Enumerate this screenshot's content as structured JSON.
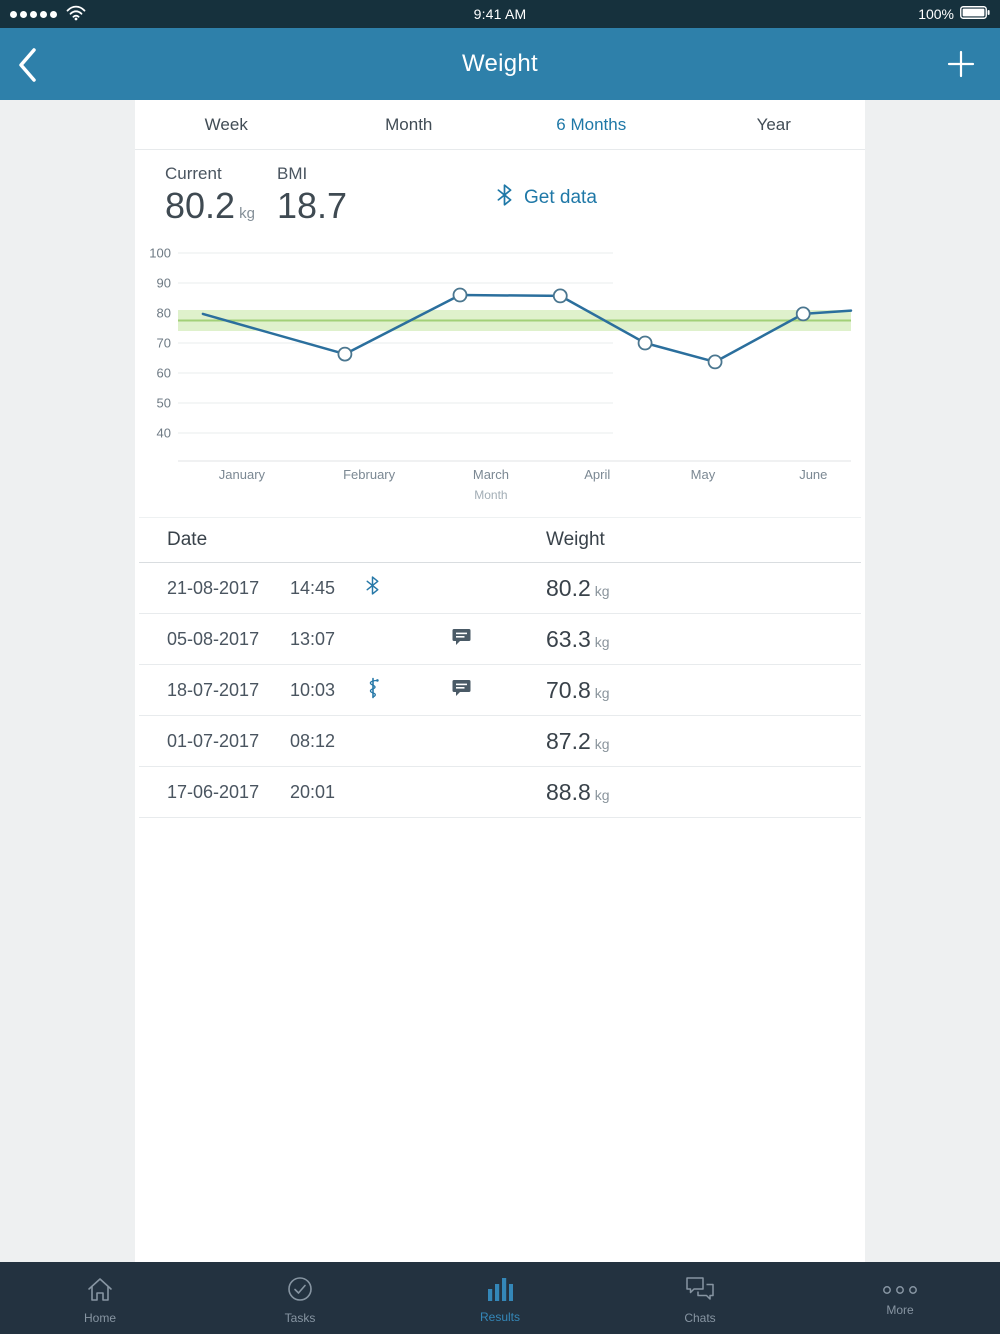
{
  "status_bar": {
    "time": "9:41 AM",
    "battery": "100%"
  },
  "nav": {
    "title": "Weight"
  },
  "tabs": [
    {
      "label": "Week",
      "active": false
    },
    {
      "label": "Month",
      "active": false
    },
    {
      "label": "6 Months",
      "active": true
    },
    {
      "label": "Year",
      "active": false
    }
  ],
  "summary": {
    "current_label": "Current",
    "current_value": "80.2",
    "current_unit": "kg",
    "bmi_label": "BMI",
    "bmi_value": "18.7",
    "get_data_label": "Get data"
  },
  "chart_data": {
    "type": "line",
    "title": "",
    "xlabel": "Month",
    "ylabel": "",
    "ylim": [
      40,
      100
    ],
    "yticks": [
      100,
      90,
      80,
      70,
      60,
      50,
      40
    ],
    "categories": [
      "January",
      "February",
      "March",
      "April",
      "May",
      "June"
    ],
    "tick_pos": [
      0.095,
      0.284,
      0.465,
      0.623,
      0.78,
      0.944
    ],
    "target_band": {
      "min": 74,
      "max": 81,
      "mid": 77.5
    },
    "series": [
      {
        "name": "Weight (kg)",
        "points": [
          {
            "t": 0.037,
            "kg": 79.7,
            "marker": false
          },
          {
            "t": 0.248,
            "kg": 66.3,
            "marker": true
          },
          {
            "t": 0.419,
            "kg": 86.0,
            "marker": true
          },
          {
            "t": 0.568,
            "kg": 85.7,
            "marker": true
          },
          {
            "t": 0.694,
            "kg": 70.0,
            "marker": true
          },
          {
            "t": 0.798,
            "kg": 63.7,
            "marker": true
          },
          {
            "t": 0.929,
            "kg": 79.7,
            "marker": true
          },
          {
            "t": 1.0,
            "kg": 80.8,
            "marker": false
          }
        ]
      }
    ],
    "grid": true,
    "legend": "none"
  },
  "table": {
    "columns": [
      "Date",
      "Weight"
    ],
    "rows": [
      {
        "date": "21-08-2017",
        "time": "14:45",
        "icon1": "bluetooth",
        "icon2": null,
        "value": "80.2",
        "unit": "kg"
      },
      {
        "date": "05-08-2017",
        "time": "13:07",
        "icon1": null,
        "icon2": "comment",
        "value": "63.3",
        "unit": "kg"
      },
      {
        "date": "18-07-2017",
        "time": "10:03",
        "icon1": "medical",
        "icon2": "comment",
        "value": "70.8",
        "unit": "kg"
      },
      {
        "date": "01-07-2017",
        "time": "08:12",
        "icon1": null,
        "icon2": null,
        "value": "87.2",
        "unit": "kg"
      },
      {
        "date": "17-06-2017",
        "time": "20:01",
        "icon1": null,
        "icon2": null,
        "value": "88.8",
        "unit": "kg"
      }
    ]
  },
  "tab_bar": [
    {
      "label": "Home",
      "icon": "home",
      "active": false
    },
    {
      "label": "Tasks",
      "icon": "tasks",
      "active": false
    },
    {
      "label": "Results",
      "icon": "results",
      "active": true
    },
    {
      "label": "Chats",
      "icon": "chats",
      "active": false
    },
    {
      "label": "More",
      "icon": "more",
      "active": false
    }
  ],
  "colors": {
    "nav_bg": "#2e80aa",
    "status_bar_bg": "#16313d",
    "tab_bar_bg": "#233240",
    "link_blue": "#1f78a7",
    "chart_line": "#2b6f9d",
    "marker_stroke": "#4a768f",
    "band_green": "#dff1cc",
    "band_line_green": "#a2d077",
    "grid_line": "#e9ecee",
    "axis_text": "#7b8893",
    "inactive_gray": "#8795a2",
    "active_blue": "#3487b8"
  }
}
